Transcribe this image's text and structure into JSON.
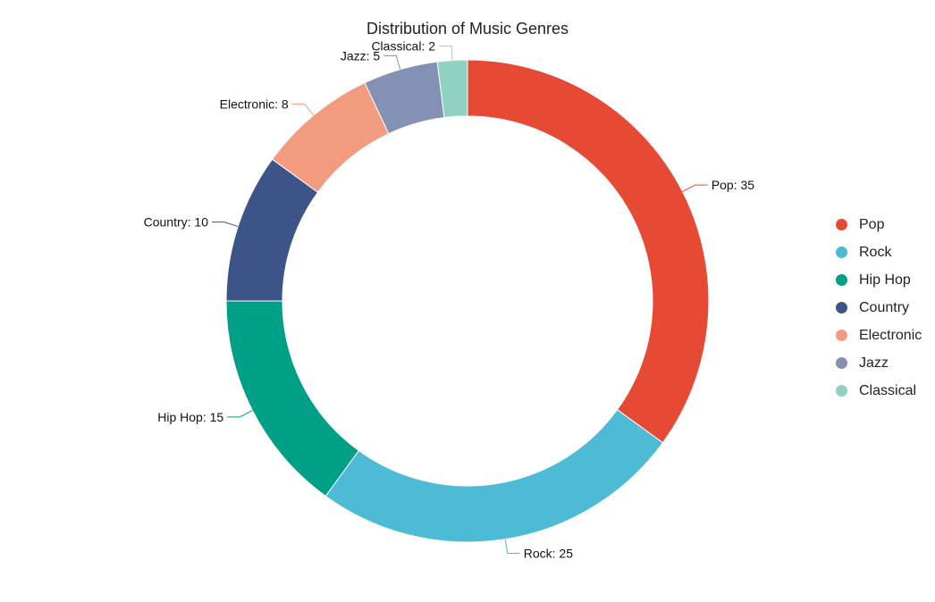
{
  "chart_data": {
    "type": "pie",
    "title": "Distribution of Music Genres",
    "categories": [
      "Pop",
      "Rock",
      "Hip Hop",
      "Country",
      "Electronic",
      "Jazz",
      "Classical"
    ],
    "values": [
      35,
      25,
      15,
      10,
      8,
      5,
      2
    ],
    "colors": [
      "#e64a35",
      "#4dbbd5",
      "#00a087",
      "#3c5488",
      "#f39b7f",
      "#8491b4",
      "#91d1c2"
    ],
    "data_labels": [
      "Pop: 35",
      "Rock: 25",
      "Hip Hop: 15",
      "Country: 10",
      "Electronic: 8",
      "Jazz: 5",
      "Classical: 2"
    ],
    "donut": true,
    "legend": "right"
  }
}
